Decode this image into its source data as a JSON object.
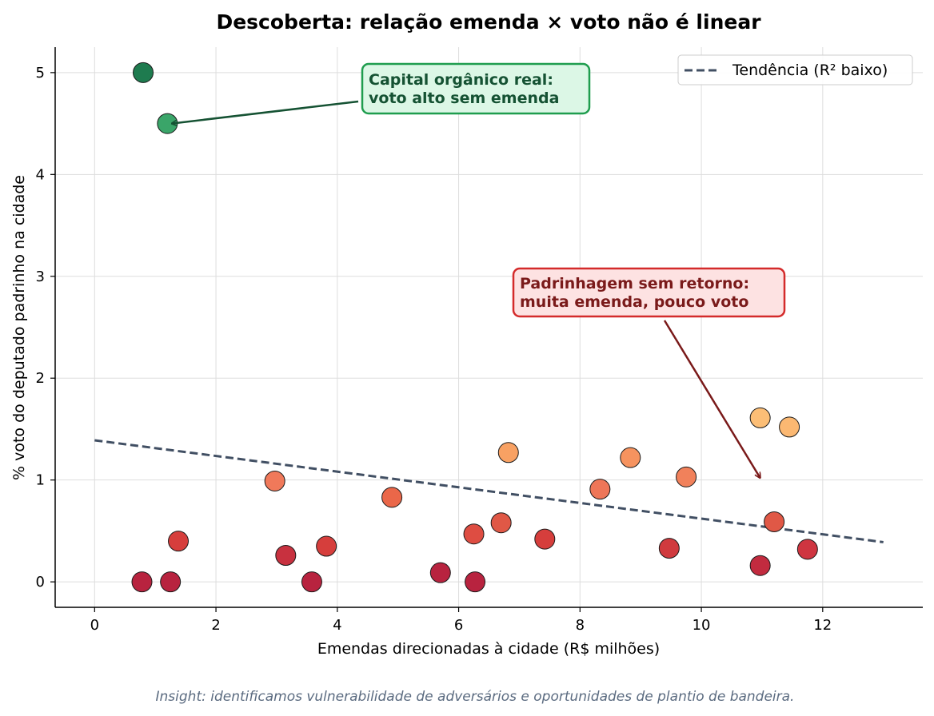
{
  "chart_data": {
    "type": "scatter",
    "title": "Descoberta: relação emenda × voto não é linear",
    "xlabel": "Emendas direcionadas à cidade (R$ milhões)",
    "ylabel": "% voto do deputado padrinho na cidade",
    "xlim": [
      -0.65,
      13.65
    ],
    "ylim": [
      -0.25,
      5.25
    ],
    "x_ticks": [
      0,
      2,
      4,
      6,
      8,
      10,
      12
    ],
    "y_ticks": [
      0,
      1,
      2,
      3,
      4,
      5
    ],
    "grid": true,
    "legend_position": "top-right",
    "points": [
      {
        "x": 0.8,
        "y": 5.0,
        "color": "#1e7b4f"
      },
      {
        "x": 1.2,
        "y": 4.5,
        "color": "#3aa569"
      },
      {
        "x": 0.78,
        "y": 0.0,
        "color": "#b8233f"
      },
      {
        "x": 1.25,
        "y": 0.0,
        "color": "#b8233f"
      },
      {
        "x": 1.38,
        "y": 0.4,
        "color": "#d63e3c"
      },
      {
        "x": 2.97,
        "y": 0.99,
        "color": "#f0795a"
      },
      {
        "x": 3.15,
        "y": 0.26,
        "color": "#c8313f"
      },
      {
        "x": 3.58,
        "y": 0.0,
        "color": "#b8233f"
      },
      {
        "x": 3.82,
        "y": 0.35,
        "color": "#d63e3c"
      },
      {
        "x": 4.9,
        "y": 0.83,
        "color": "#ea6749"
      },
      {
        "x": 5.7,
        "y": 0.09,
        "color": "#b8233f"
      },
      {
        "x": 6.25,
        "y": 0.47,
        "color": "#de4d42"
      },
      {
        "x": 6.27,
        "y": 0.0,
        "color": "#b8233f"
      },
      {
        "x": 6.7,
        "y": 0.58,
        "color": "#e05846"
      },
      {
        "x": 6.82,
        "y": 1.27,
        "color": "#f8a163"
      },
      {
        "x": 7.42,
        "y": 0.42,
        "color": "#d63e3c"
      },
      {
        "x": 8.33,
        "y": 0.91,
        "color": "#ee7658"
      },
      {
        "x": 8.83,
        "y": 1.22,
        "color": "#f6935f"
      },
      {
        "x": 9.47,
        "y": 0.33,
        "color": "#d03a3e"
      },
      {
        "x": 9.75,
        "y": 1.03,
        "color": "#f1815b"
      },
      {
        "x": 10.97,
        "y": 1.61,
        "color": "#fcbe76"
      },
      {
        "x": 10.97,
        "y": 0.16,
        "color": "#c22b3f"
      },
      {
        "x": 11.2,
        "y": 0.59,
        "color": "#e05846"
      },
      {
        "x": 11.45,
        "y": 1.52,
        "color": "#fbb872"
      },
      {
        "x": 11.75,
        "y": 0.32,
        "color": "#cf3540"
      }
    ],
    "trend": {
      "name": "Tendência (R² baixo)",
      "x": [
        0,
        13
      ],
      "y": [
        1.39,
        0.39
      ],
      "color": "#414f63",
      "style": "dashed"
    },
    "annotations": [
      {
        "lines": [
          "Capital orgânico real:",
          "voto alto sem emenda"
        ],
        "arrow_to": {
          "x": 1.27,
          "y": 4.5
        },
        "text_color": "#155233",
        "box_fill": "#dcf7e6",
        "box_edge": "#1f9d4e"
      },
      {
        "lines": [
          "Padrinhagem sem retorno:",
          "muita emenda, pouco voto"
        ],
        "arrow_to": {
          "x": 10.97,
          "y": 1.02
        },
        "text_color": "#7a1a1a",
        "box_fill": "#fde2e2",
        "box_edge": "#d42b2b"
      }
    ]
  },
  "footnote": "Insight: identificamos vulnerabilidade de adversários e oportunidades de plantio de bandeira."
}
